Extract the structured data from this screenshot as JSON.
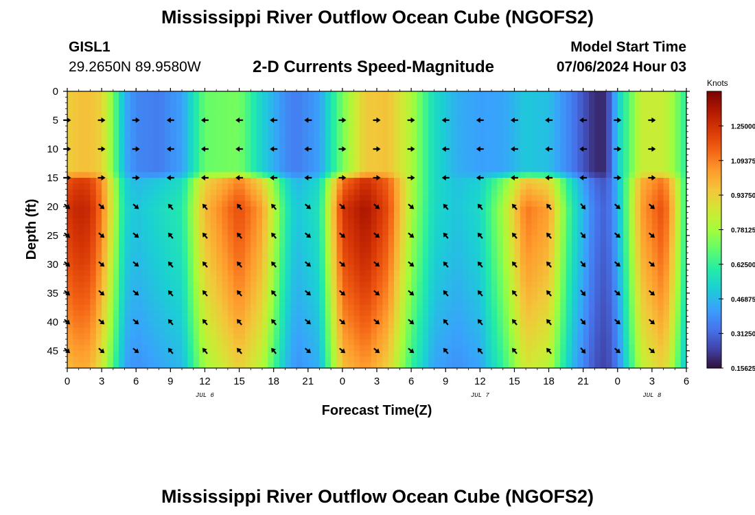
{
  "header": {
    "title": "Mississippi River Outflow Ocean Cube (NGOFS2)",
    "station_id": "GISL1",
    "station_coords": "29.2650N  89.9580W",
    "product": "2-D Currents Speed-Magnitude",
    "model_start_label": "Model Start Time",
    "model_start_value": "07/06/2024 Hour 03"
  },
  "footer": {
    "title": "Mississippi River Outflow Ocean Cube (NGOFS2)"
  },
  "colors": {
    "colormap": [
      "#30123b",
      "#4145ab",
      "#4675ed",
      "#39a2fc",
      "#1bcfd4",
      "#24eca6",
      "#61fc6c",
      "#a4fc3b",
      "#d1e834",
      "#f3c63a",
      "#fe9b2d",
      "#f36315",
      "#d93806",
      "#b11901",
      "#7a0402"
    ],
    "arrow": "#000000"
  },
  "chart_data": {
    "type": "heatmap",
    "xlabel": "Forecast Time(Z)",
    "ylabel": "Depth (ft)",
    "x_range_hours": [
      0,
      54
    ],
    "x_ticks": [
      {
        "hour": 0,
        "label": "0"
      },
      {
        "hour": 3,
        "label": "3"
      },
      {
        "hour": 6,
        "label": "6"
      },
      {
        "hour": 9,
        "label": "9"
      },
      {
        "hour": 12,
        "label": "12"
      },
      {
        "hour": 15,
        "label": "15"
      },
      {
        "hour": 18,
        "label": "18"
      },
      {
        "hour": 21,
        "label": "21"
      },
      {
        "hour": 24,
        "label": "0"
      },
      {
        "hour": 27,
        "label": "3"
      },
      {
        "hour": 30,
        "label": "6"
      },
      {
        "hour": 33,
        "label": "9"
      },
      {
        "hour": 36,
        "label": "12"
      },
      {
        "hour": 39,
        "label": "15"
      },
      {
        "hour": 42,
        "label": "18"
      },
      {
        "hour": 45,
        "label": "21"
      },
      {
        "hour": 48,
        "label": "0"
      },
      {
        "hour": 51,
        "label": "3"
      },
      {
        "hour": 54,
        "label": "6"
      }
    ],
    "date_labels": [
      {
        "hour": 12,
        "label": "JUL 6"
      },
      {
        "hour": 36,
        "label": "JUL 7"
      },
      {
        "hour": 51,
        "label": "JUL 8"
      }
    ],
    "y_range_ft": [
      0,
      48
    ],
    "y_ticks": [
      0,
      5,
      10,
      15,
      20,
      25,
      30,
      35,
      40,
      45
    ],
    "colorbar": {
      "units": "Knots",
      "range": [
        0.15625,
        1.40625
      ],
      "ticks": [
        "1.25000",
        "1.09375",
        "0.93750",
        "0.78125",
        "0.62500",
        "0.46875",
        "0.31250",
        "0.15625"
      ]
    },
    "upper_layer": {
      "depth_range_ft": [
        0,
        15.5
      ],
      "hours": [
        0,
        1,
        2,
        3,
        4,
        5,
        6,
        8,
        10,
        12,
        15,
        17,
        19,
        20,
        22,
        24,
        26,
        28,
        30,
        32,
        34,
        36,
        38,
        40,
        42,
        44,
        46,
        47,
        48,
        50,
        52,
        53,
        54
      ],
      "speed": [
        0.94,
        0.97,
        0.97,
        0.93,
        0.72,
        0.45,
        0.37,
        0.35,
        0.42,
        0.7,
        0.72,
        0.52,
        0.38,
        0.35,
        0.42,
        0.72,
        0.95,
        0.97,
        0.8,
        0.55,
        0.45,
        0.42,
        0.43,
        0.5,
        0.48,
        0.35,
        0.2,
        0.2,
        0.5,
        0.85,
        0.85,
        0.75,
        0.6
      ]
    },
    "lower_layer": {
      "depth_range_ft": [
        15.5,
        48
      ],
      "hours": [
        0,
        1,
        2,
        3,
        4,
        5,
        6,
        8,
        10,
        12,
        15,
        17,
        19,
        20,
        22,
        24,
        26,
        28,
        30,
        32,
        34,
        36,
        38,
        40,
        42,
        44,
        46,
        47,
        48,
        50,
        52,
        53,
        54
      ],
      "speed": [
        1.25,
        1.3,
        1.28,
        1.12,
        0.85,
        0.55,
        0.5,
        0.55,
        0.6,
        1.0,
        1.2,
        1.05,
        0.62,
        0.5,
        0.58,
        1.25,
        1.35,
        1.2,
        0.8,
        0.55,
        0.5,
        0.55,
        0.8,
        1.12,
        1.05,
        0.6,
        0.35,
        0.3,
        0.45,
        1.05,
        1.2,
        0.95,
        0.6
      ]
    },
    "vectors": {
      "hours": [
        0,
        3,
        6,
        9,
        12,
        15,
        18,
        21,
        24,
        27,
        30,
        33,
        36,
        39,
        42,
        45,
        48,
        51
      ],
      "depths_ft": [
        5,
        10,
        15,
        20,
        25,
        30,
        35,
        40,
        45
      ],
      "upper_direction_deg": [
        90,
        90,
        90,
        270,
        270,
        270,
        270,
        270,
        90,
        90,
        90,
        270,
        270,
        270,
        270,
        270,
        90,
        90
      ],
      "lower_direction_deg": [
        130,
        130,
        130,
        320,
        320,
        320,
        320,
        130,
        130,
        130,
        130,
        320,
        320,
        320,
        320,
        140,
        130,
        130
      ]
    }
  }
}
